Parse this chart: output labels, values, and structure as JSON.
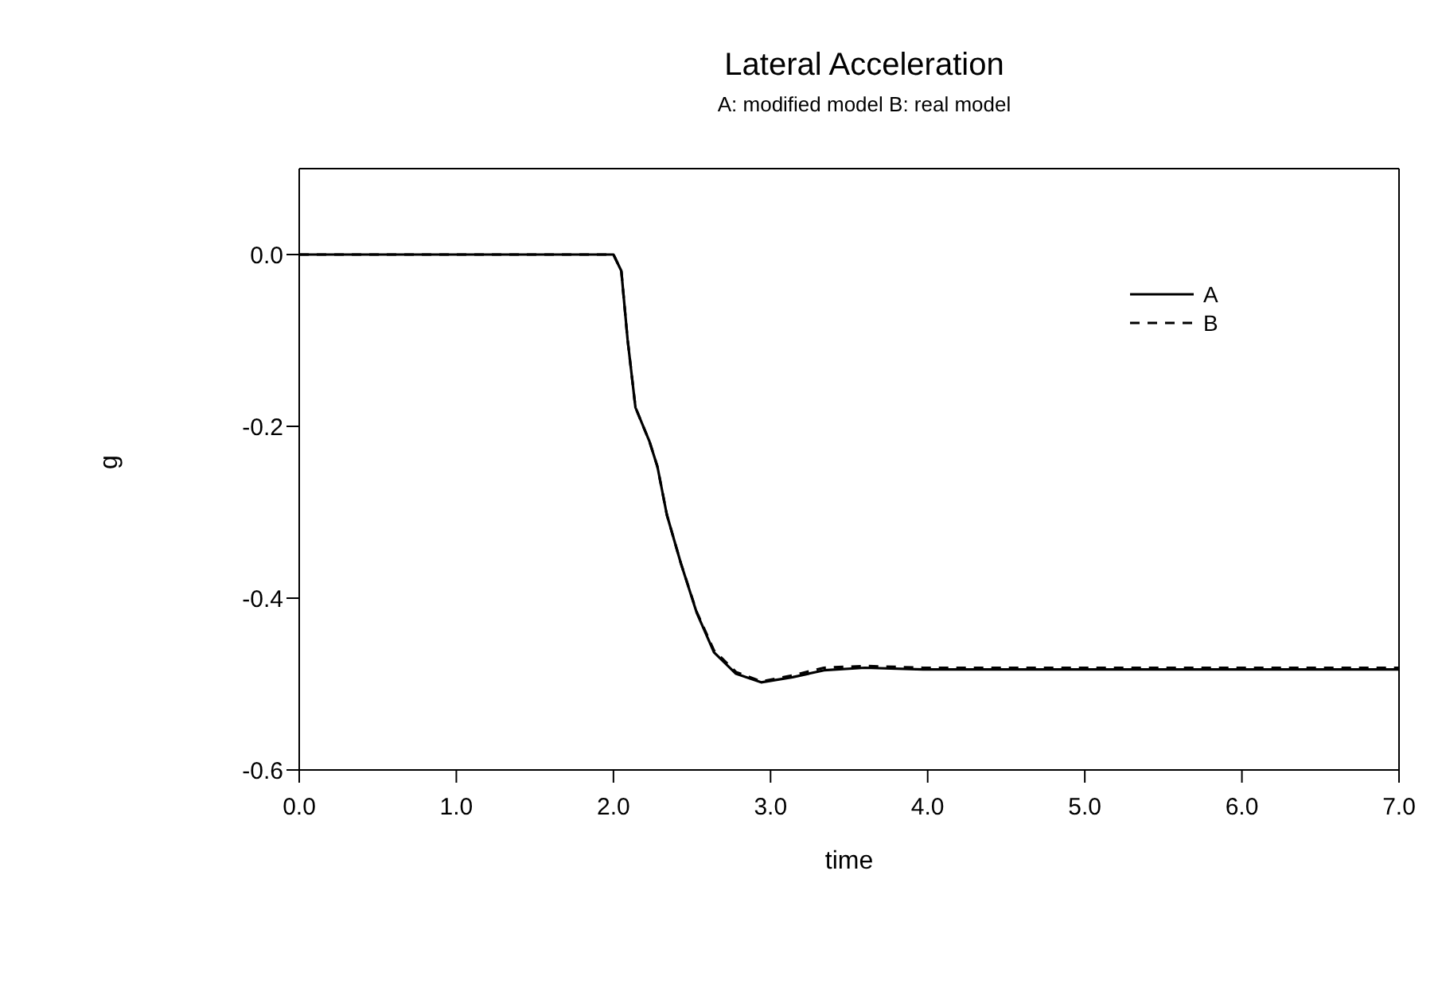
{
  "chart_data": {
    "type": "line",
    "title": "Lateral Acceleration",
    "subtitle": "A: modified model  B: real model",
    "xlabel": "time",
    "ylabel": "g",
    "xlim": [
      0,
      7
    ],
    "xticks": [
      {
        "value": 0,
        "label": "0.0"
      },
      {
        "value": 1,
        "label": "1.0"
      },
      {
        "value": 2,
        "label": "2.0"
      },
      {
        "value": 3,
        "label": "3.0"
      },
      {
        "value": 4,
        "label": "4.0"
      },
      {
        "value": 5,
        "label": "5.0"
      },
      {
        "value": 6,
        "label": "6.0"
      },
      {
        "value": 7,
        "label": "7.0"
      }
    ],
    "ylim": [
      -0.6,
      0.1
    ],
    "yticks": [
      {
        "value": -0.6,
        "label": "-0.6"
      },
      {
        "value": -0.4,
        "label": "-0.4"
      },
      {
        "value": -0.2,
        "label": "-0.2"
      },
      {
        "value": 0,
        "label": "0.0"
      }
    ],
    "grid": false,
    "legend": "top right",
    "marker": "none",
    "series": [
      {
        "name": "A",
        "color": "#000000",
        "line_style": "solid",
        "x": [
          0,
          1,
          2.0,
          2.05,
          2.09,
          2.14,
          2.23,
          2.28,
          2.34,
          2.43,
          2.53,
          2.64,
          2.78,
          2.94,
          3.14,
          3.34,
          3.6,
          3.97,
          5,
          6,
          7
        ],
        "values": [
          0,
          0,
          0,
          -0.019,
          -0.099,
          -0.178,
          -0.218,
          -0.247,
          -0.303,
          -0.36,
          -0.417,
          -0.463,
          -0.488,
          -0.498,
          -0.492,
          -0.484,
          -0.481,
          -0.483,
          -0.483,
          -0.483,
          -0.483
        ]
      },
      {
        "name": "B",
        "color": "#000000",
        "line_style": "dashed",
        "x": [
          0,
          1,
          2.0,
          2.05,
          2.09,
          2.14,
          2.23,
          2.28,
          2.34,
          2.43,
          2.53,
          2.64,
          2.78,
          2.94,
          3.14,
          3.34,
          3.6,
          3.97,
          5,
          6,
          7
        ],
        "values": [
          0,
          0,
          0,
          -0.019,
          -0.099,
          -0.178,
          -0.218,
          -0.247,
          -0.303,
          -0.36,
          -0.416,
          -0.461,
          -0.486,
          -0.497,
          -0.49,
          -0.481,
          -0.479,
          -0.481,
          -0.481,
          -0.481,
          -0.481
        ]
      }
    ]
  }
}
